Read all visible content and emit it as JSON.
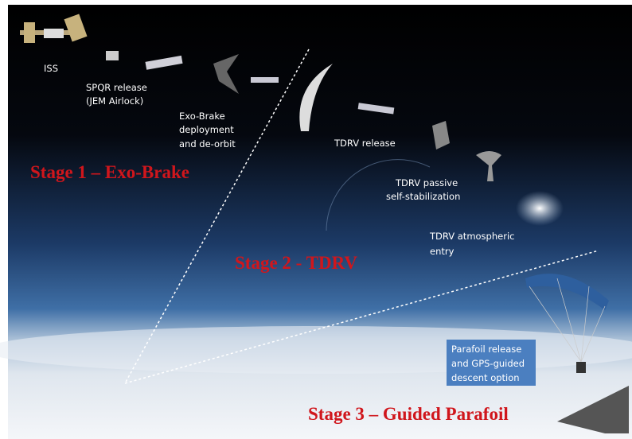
{
  "steps": [
    {
      "lines": [
        "ISS"
      ]
    },
    {
      "lines": [
        "SPQR release",
        "(JEM Airlock)"
      ]
    },
    {
      "lines": [
        "Exo-Brake",
        "deployment",
        "and de-orbit"
      ]
    },
    {
      "lines": [
        "TDRV release"
      ]
    },
    {
      "lines": [
        "TDRV passive",
        "self-stabilization"
      ]
    },
    {
      "lines": [
        "TDRV atmospheric",
        "entry"
      ]
    },
    {
      "lines": [
        "Parafoil release",
        "and GPS-guided",
        "descent option"
      ]
    }
  ],
  "stages": [
    "Stage 1 – Exo-Brake",
    "Stage 2 - TDRV",
    "Stage 3 – Guided Parafoil"
  ]
}
